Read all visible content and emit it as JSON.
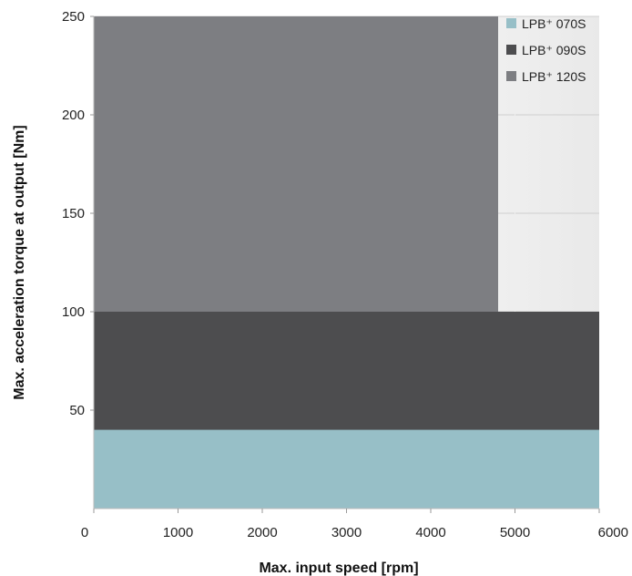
{
  "chart_data": {
    "type": "area",
    "xlabel": "Max. input speed [rpm]",
    "ylabel": "Max. acceleration torque at output [Nm]",
    "xlim": [
      0,
      6000
    ],
    "ylim": [
      0,
      250
    ],
    "x_ticks": [
      "0",
      "1000",
      "2000",
      "3000",
      "4000",
      "5000",
      "6000"
    ],
    "y_ticks": [
      "50",
      "100",
      "150",
      "200",
      "250"
    ],
    "grid": true,
    "legend_position": "top-right",
    "series": [
      {
        "name": "LPB⁺ 070S",
        "color": "#97bfc7",
        "x": [
          0,
          6000
        ],
        "y": [
          40,
          40
        ]
      },
      {
        "name": "LPB⁺ 090S",
        "color": "#4d4d4f",
        "x": [
          0,
          6000
        ],
        "y": [
          100,
          100
        ]
      },
      {
        "name": "LPB⁺ 120S",
        "color": "#7d7e82",
        "x": [
          0,
          4800
        ],
        "y": [
          250,
          250
        ]
      }
    ]
  }
}
